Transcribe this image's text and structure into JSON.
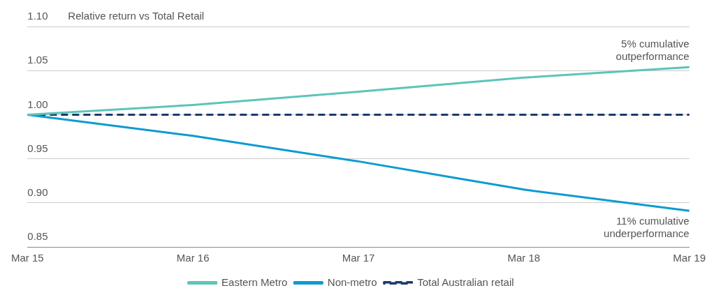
{
  "chart_data": {
    "type": "line",
    "title": "Relative return vs Total Retail",
    "categories": [
      "Mar 15",
      "Mar 16",
      "Mar 17",
      "Mar 18",
      "Mar 19"
    ],
    "series": [
      {
        "name": "Eastern Metro",
        "color": "#5bc5b9",
        "values": [
          1.0,
          1.011,
          1.026,
          1.042,
          1.054
        ]
      },
      {
        "name": "Non-metro",
        "color": "#0b9bd0",
        "values": [
          1.0,
          0.976,
          0.947,
          0.915,
          0.891
        ]
      },
      {
        "name": "Total Australian retail",
        "color": "#1b3a6b",
        "values": [
          1.0,
          1.0,
          1.0,
          1.0,
          1.0
        ],
        "line_style": "dashed"
      }
    ],
    "ylim": [
      0.85,
      1.1
    ],
    "yticks": [
      {
        "value": 0.85,
        "label": "0.85"
      },
      {
        "value": 0.9,
        "label": "0.90"
      },
      {
        "value": 0.95,
        "label": "0.95"
      },
      {
        "value": 1.0,
        "label": "1.00"
      },
      {
        "value": 1.05,
        "label": "1.05"
      },
      {
        "value": 1.1,
        "label": "1.10"
      }
    ],
    "annotations": [
      {
        "text": "5% cumulative outperformance",
        "x": "Mar 19",
        "y": 1.054
      },
      {
        "text": "11% cumulative underperformance",
        "x": "Mar 19",
        "y": 0.891
      }
    ],
    "grid": "y",
    "legend": "bottom",
    "marker": "none"
  }
}
